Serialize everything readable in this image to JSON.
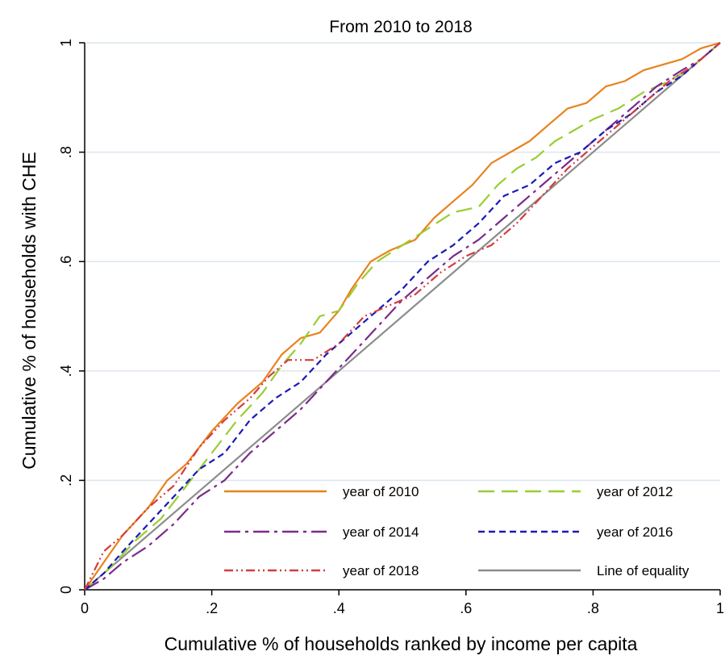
{
  "chart_data": {
    "type": "line",
    "title": "From 2010 to 2018",
    "xlabel": "Cumulative % of households ranked by income per capita",
    "ylabel": "Cumulative % of households with CHE",
    "xlim": [
      0,
      1
    ],
    "ylim": [
      0,
      1
    ],
    "xticks": [
      {
        "value": 0,
        "label": "0"
      },
      {
        "value": 0.2,
        "label": ".2"
      },
      {
        "value": 0.4,
        "label": ".4"
      },
      {
        "value": 0.6,
        "label": ".6"
      },
      {
        "value": 0.8,
        "label": ".8"
      },
      {
        "value": 1,
        "label": "1"
      }
    ],
    "yticks": [
      {
        "value": 0,
        "label": "0"
      },
      {
        "value": 0.2,
        "label": ".2"
      },
      {
        "value": 0.4,
        "label": ".4"
      },
      {
        "value": 0.6,
        "label": ".6"
      },
      {
        "value": 0.8,
        "label": ".8"
      },
      {
        "value": 1,
        "label": "1"
      }
    ],
    "grid": "horizontal",
    "legend_position": "bottom-right",
    "series": [
      {
        "name": "year of 2010",
        "color": "#E8821E",
        "dash": "solid",
        "x": [
          0,
          0.03,
          0.06,
          0.1,
          0.13,
          0.16,
          0.2,
          0.24,
          0.28,
          0.31,
          0.34,
          0.37,
          0.4,
          0.42,
          0.45,
          0.48,
          0.52,
          0.55,
          0.58,
          0.61,
          0.64,
          0.67,
          0.7,
          0.73,
          0.76,
          0.79,
          0.82,
          0.85,
          0.88,
          0.91,
          0.94,
          0.97,
          1
        ],
        "y": [
          0,
          0.05,
          0.1,
          0.15,
          0.2,
          0.23,
          0.29,
          0.34,
          0.38,
          0.43,
          0.46,
          0.47,
          0.51,
          0.55,
          0.6,
          0.62,
          0.64,
          0.68,
          0.71,
          0.74,
          0.78,
          0.8,
          0.82,
          0.85,
          0.88,
          0.89,
          0.92,
          0.93,
          0.95,
          0.96,
          0.97,
          0.99,
          1
        ]
      },
      {
        "name": "year of 2012",
        "color": "#9ACD32",
        "dash": "longdash",
        "x": [
          0,
          0.04,
          0.08,
          0.12,
          0.16,
          0.2,
          0.24,
          0.28,
          0.31,
          0.34,
          0.37,
          0.4,
          0.43,
          0.46,
          0.5,
          0.54,
          0.58,
          0.62,
          0.65,
          0.68,
          0.71,
          0.74,
          0.77,
          0.8,
          0.84,
          0.88,
          0.92,
          0.96,
          1
        ],
        "y": [
          0,
          0.04,
          0.09,
          0.13,
          0.19,
          0.25,
          0.31,
          0.36,
          0.41,
          0.45,
          0.5,
          0.51,
          0.56,
          0.6,
          0.63,
          0.66,
          0.69,
          0.7,
          0.74,
          0.77,
          0.79,
          0.82,
          0.84,
          0.86,
          0.88,
          0.91,
          0.93,
          0.96,
          1
        ]
      },
      {
        "name": "year of 2014",
        "color": "#7B2A8C",
        "dash": "dashdot",
        "x": [
          0,
          0.03,
          0.06,
          0.1,
          0.14,
          0.18,
          0.22,
          0.26,
          0.3,
          0.34,
          0.38,
          0.42,
          0.46,
          0.5,
          0.54,
          0.58,
          0.62,
          0.66,
          0.7,
          0.74,
          0.78,
          0.82,
          0.86,
          0.9,
          0.94,
          0.97,
          1
        ],
        "y": [
          0,
          0.02,
          0.05,
          0.08,
          0.12,
          0.17,
          0.2,
          0.25,
          0.29,
          0.33,
          0.38,
          0.43,
          0.48,
          0.53,
          0.57,
          0.61,
          0.64,
          0.68,
          0.72,
          0.76,
          0.8,
          0.84,
          0.88,
          0.92,
          0.95,
          0.97,
          1
        ]
      },
      {
        "name": "year of 2016",
        "color": "#1A1AB8",
        "dash": "shortdash",
        "x": [
          0,
          0.03,
          0.06,
          0.1,
          0.14,
          0.18,
          0.22,
          0.26,
          0.3,
          0.34,
          0.38,
          0.42,
          0.46,
          0.5,
          0.54,
          0.58,
          0.62,
          0.66,
          0.7,
          0.74,
          0.78,
          0.82,
          0.86,
          0.9,
          0.94,
          0.97,
          1
        ],
        "y": [
          0,
          0.03,
          0.07,
          0.12,
          0.17,
          0.22,
          0.25,
          0.31,
          0.35,
          0.38,
          0.43,
          0.47,
          0.51,
          0.55,
          0.6,
          0.63,
          0.67,
          0.72,
          0.74,
          0.78,
          0.8,
          0.84,
          0.87,
          0.91,
          0.94,
          0.97,
          1
        ]
      },
      {
        "name": "year of 2018",
        "color": "#D43C3C",
        "dash": "dashdotdot",
        "x": [
          0,
          0.03,
          0.06,
          0.1,
          0.14,
          0.18,
          0.22,
          0.26,
          0.29,
          0.32,
          0.36,
          0.4,
          0.44,
          0.48,
          0.52,
          0.56,
          0.6,
          0.64,
          0.68,
          0.72,
          0.76,
          0.8,
          0.84,
          0.88,
          0.92,
          0.96,
          1
        ],
        "y": [
          0,
          0.07,
          0.1,
          0.15,
          0.19,
          0.26,
          0.31,
          0.35,
          0.39,
          0.42,
          0.42,
          0.45,
          0.5,
          0.52,
          0.54,
          0.58,
          0.61,
          0.63,
          0.67,
          0.72,
          0.77,
          0.81,
          0.85,
          0.89,
          0.93,
          0.96,
          1
        ]
      },
      {
        "name": "Line of equality",
        "color": "#8C8C8C",
        "dash": "solid",
        "x": [
          0,
          1
        ],
        "y": [
          0,
          1
        ]
      }
    ]
  }
}
